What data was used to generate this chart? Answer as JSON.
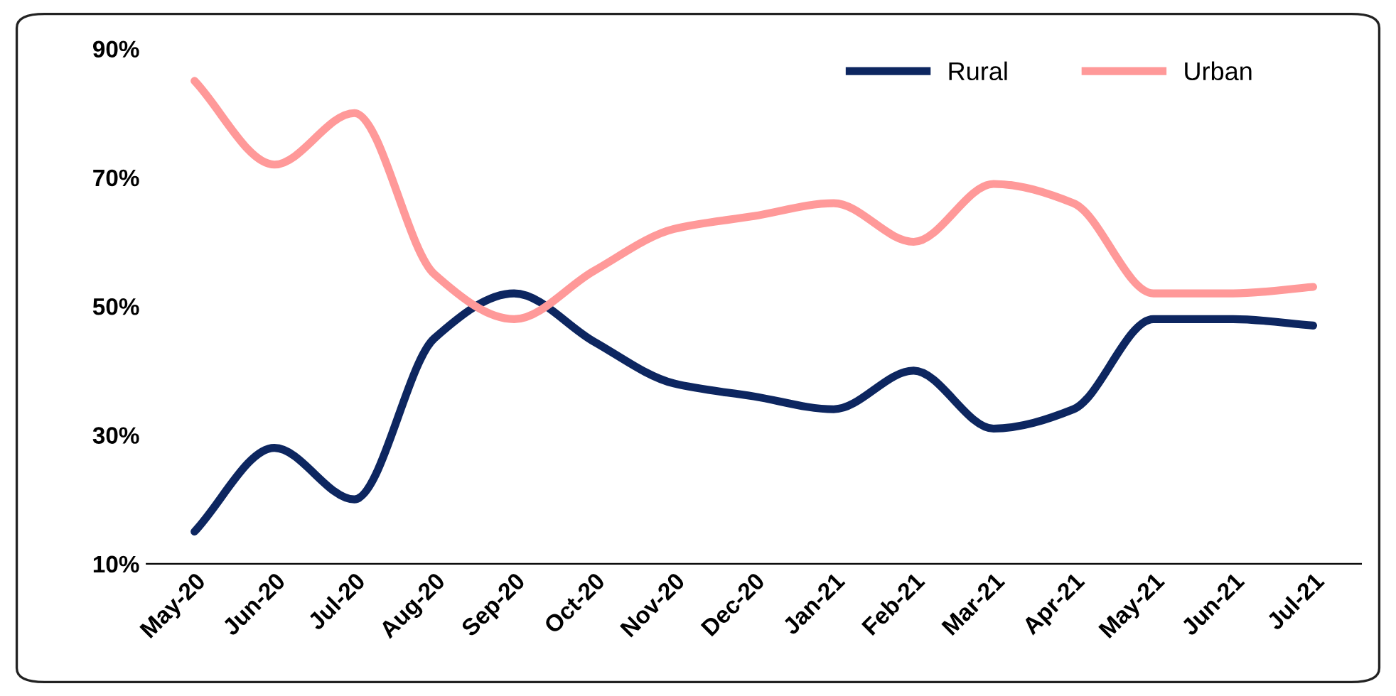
{
  "chart_data": {
    "type": "line",
    "categories": [
      "May-20",
      "Jun-20",
      "Jul-20",
      "Aug-20",
      "Sep-20",
      "Oct-20",
      "Nov-20",
      "Dec-20",
      "Jan-21",
      "Feb-21",
      "Mar-21",
      "Apr-21",
      "May-21",
      "Jun-21",
      "Jul-21"
    ],
    "series": [
      {
        "name": "Rural",
        "color": "#0d2660",
        "values": [
          15,
          28,
          20,
          45,
          52,
          44.5,
          38,
          36,
          34,
          40,
          31,
          34,
          48,
          48,
          47
        ]
      },
      {
        "name": "Urban",
        "color": "#ff9999",
        "values": [
          85,
          72,
          80,
          55,
          48,
          55.5,
          62,
          64,
          66,
          60,
          69,
          66,
          52,
          52,
          53
        ]
      }
    ],
    "ylim": [
      10,
      90
    ],
    "yticks": [
      {
        "value": 10,
        "label": "10%"
      },
      {
        "value": 30,
        "label": "30%"
      },
      {
        "value": 50,
        "label": "50%"
      },
      {
        "value": 70,
        "label": "70%"
      },
      {
        "value": 90,
        "label": "90%"
      }
    ],
    "grid": false,
    "legend": "top right",
    "marker": "none",
    "line_style": "solid"
  }
}
